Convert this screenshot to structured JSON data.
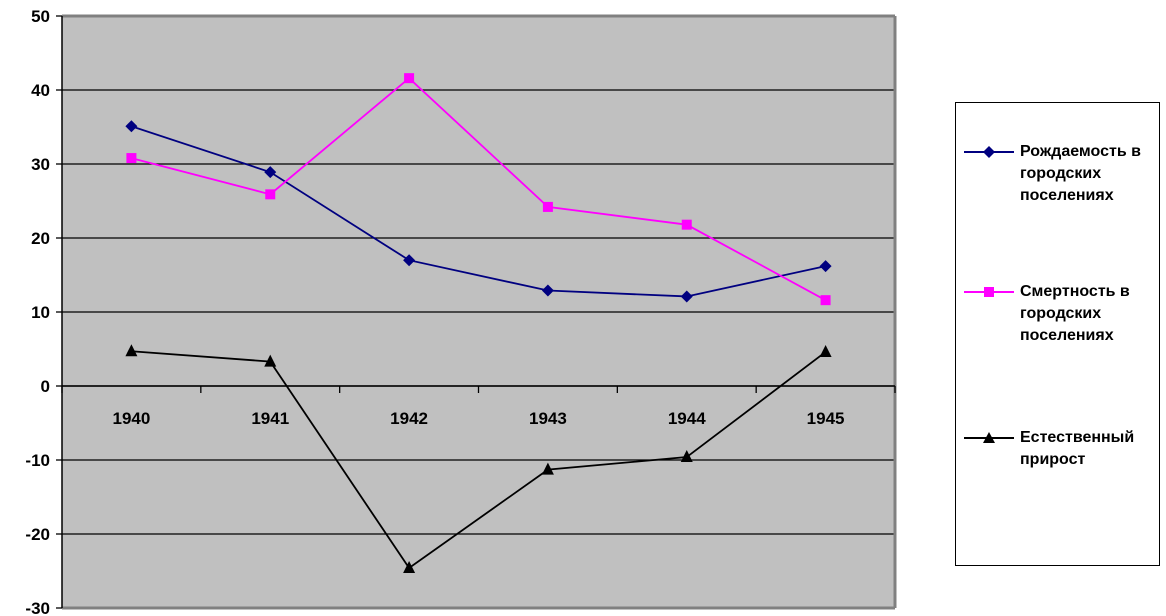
{
  "chart_data": {
    "type": "line",
    "title": "",
    "xlabel": "",
    "ylabel": "",
    "categories": [
      "1940",
      "1941",
      "1942",
      "1943",
      "1944",
      "1945"
    ],
    "ylim": [
      -30,
      50
    ],
    "yticks": [
      -30,
      -20,
      -10,
      0,
      10,
      20,
      30,
      40,
      50
    ],
    "grid": true,
    "plot_background": "#c0c0c0",
    "legend_position": "right",
    "series": [
      {
        "name": "Рождаемость в городских поселениях",
        "color": "#000080",
        "marker": "diamond",
        "values": [
          35.1,
          28.9,
          17.0,
          12.9,
          12.1,
          16.2
        ]
      },
      {
        "name": "Смертность в городских поселениях",
        "color": "#ff00ff",
        "marker": "square",
        "values": [
          30.8,
          25.9,
          41.6,
          24.2,
          21.8,
          11.6
        ]
      },
      {
        "name": "Естественный прирост",
        "color": "#000000",
        "marker": "triangle",
        "values": [
          4.7,
          3.3,
          -24.6,
          -11.3,
          -9.6,
          4.6
        ]
      }
    ]
  }
}
